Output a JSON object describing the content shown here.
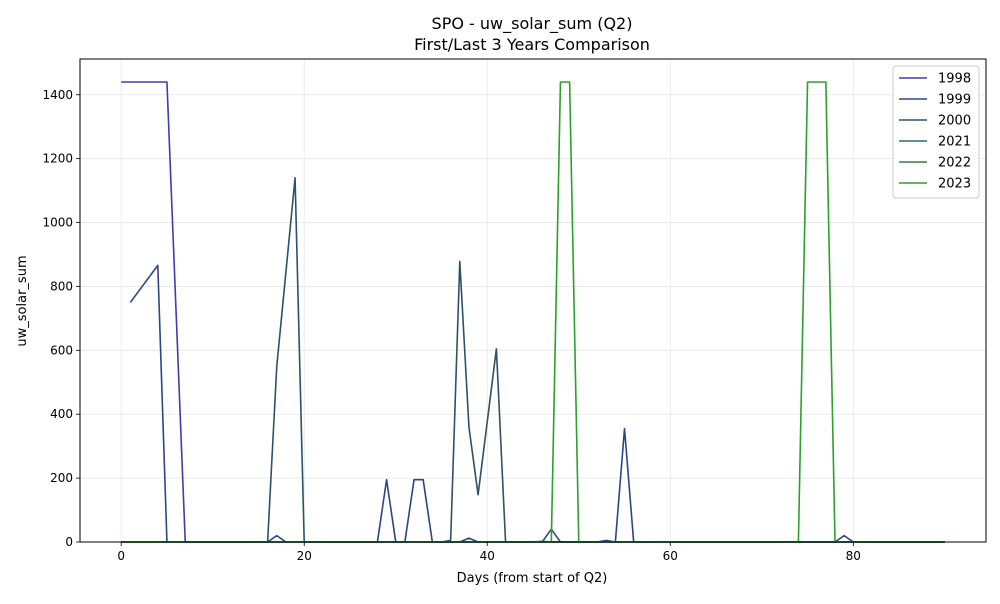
{
  "chart_data": {
    "type": "line",
    "title": "SPO - uw_solar_sum (Q2)",
    "subtitle": "First/Last 3 Years Comparison",
    "xlabel": "Days (from start of Q2)",
    "ylabel": "uw_solar_sum",
    "xlim": [
      -4.5,
      94.5
    ],
    "ylim": [
      0,
      1512
    ],
    "xticks": [
      0,
      20,
      40,
      60,
      80
    ],
    "yticks": [
      0,
      200,
      400,
      600,
      800,
      1000,
      1200,
      1400
    ],
    "grid": true,
    "legend_position": "top-right",
    "series": [
      {
        "name": "1998",
        "color": "#3d3db0",
        "points": [
          [
            0,
            1440
          ],
          [
            1,
            1440
          ],
          [
            2,
            1440
          ],
          [
            3,
            1440
          ],
          [
            4,
            1440
          ],
          [
            5,
            1440
          ],
          [
            6,
            720
          ],
          [
            7,
            0
          ],
          [
            8,
            0
          ],
          [
            90,
            0
          ]
        ]
      },
      {
        "name": "1999",
        "color": "#2e4585",
        "points": [
          [
            1,
            750
          ],
          [
            4,
            866
          ],
          [
            5,
            0
          ],
          [
            16,
            0
          ],
          [
            17,
            20
          ],
          [
            18,
            0
          ],
          [
            20,
            0
          ],
          [
            28,
            0
          ],
          [
            29,
            195
          ],
          [
            30,
            0
          ],
          [
            31,
            0
          ],
          [
            32,
            195
          ],
          [
            33,
            195
          ],
          [
            34,
            0
          ],
          [
            37,
            0
          ],
          [
            38,
            12
          ],
          [
            39,
            0
          ],
          [
            52,
            0
          ],
          [
            53,
            5
          ],
          [
            54,
            0
          ],
          [
            55,
            355
          ],
          [
            56,
            0
          ],
          [
            78,
            0
          ],
          [
            79,
            20
          ],
          [
            80,
            0
          ],
          [
            90,
            0
          ]
        ]
      },
      {
        "name": "2000",
        "color": "#2f5068",
        "points": [
          [
            0,
            0
          ],
          [
            16,
            0
          ],
          [
            17,
            550
          ],
          [
            19,
            1140
          ],
          [
            20,
            0
          ],
          [
            35,
            0
          ],
          [
            36,
            5
          ],
          [
            37,
            878
          ],
          [
            38,
            360
          ],
          [
            39,
            148
          ],
          [
            41,
            605
          ],
          [
            42,
            0
          ],
          [
            46,
            0
          ],
          [
            47,
            40
          ],
          [
            48,
            0
          ],
          [
            90,
            0
          ]
        ]
      },
      {
        "name": "2021",
        "color": "#2e6b6b",
        "points": [
          [
            0,
            0
          ],
          [
            45,
            0
          ],
          [
            46,
            2
          ],
          [
            47,
            0
          ],
          [
            90,
            0
          ]
        ]
      },
      {
        "name": "2022",
        "color": "#2e8040",
        "points": [
          [
            0,
            0
          ],
          [
            90,
            0
          ]
        ]
      },
      {
        "name": "2023",
        "color": "#2ca02c",
        "points": [
          [
            0,
            0
          ],
          [
            46,
            0
          ],
          [
            47,
            0
          ],
          [
            48,
            1440
          ],
          [
            49,
            1440
          ],
          [
            50,
            0
          ],
          [
            74,
            0
          ],
          [
            75,
            1440
          ],
          [
            76,
            1440
          ],
          [
            77,
            1440
          ],
          [
            78,
            0
          ],
          [
            90,
            0
          ]
        ]
      }
    ]
  }
}
